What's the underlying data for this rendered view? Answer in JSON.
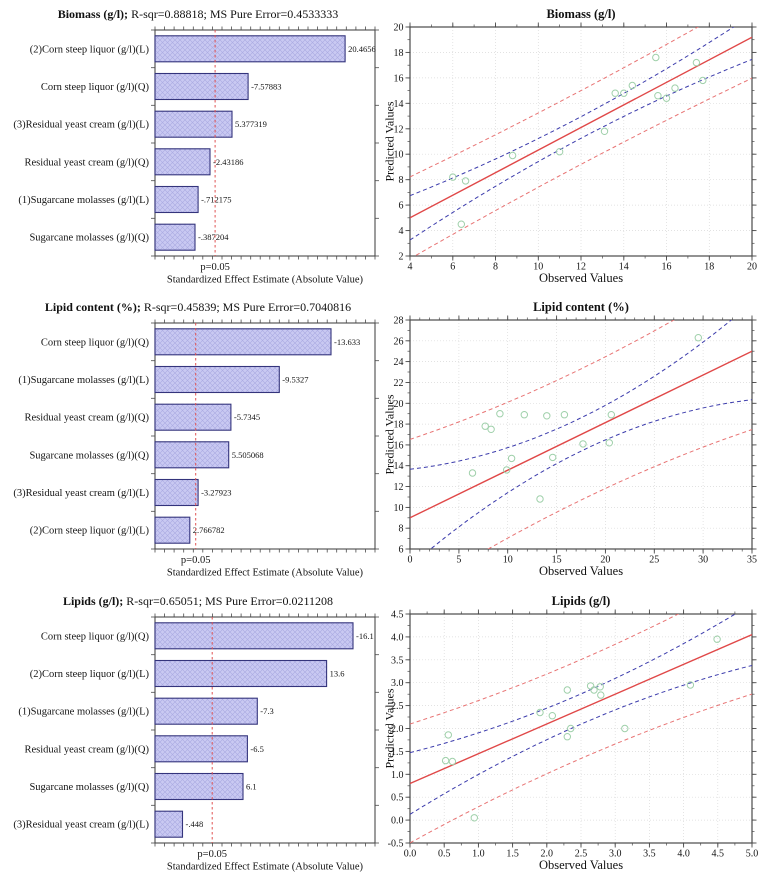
{
  "figure_description": "Six-panel Statistica output: three Pareto charts of standardized effects (left) and three predicted-vs-observed scatter plots with regression and band lines (right)",
  "labels": {
    "p": "p=0.05",
    "bar_axis": "Standardized Effect Estimate (Absolute Value)",
    "observed": "Observed Values",
    "predicted": "Predicted Values"
  },
  "colors": {
    "bar_fill": "#c9c9f2",
    "bar_hatch": "#aaaae2",
    "bar_border": "#34347c",
    "p_line": "#e05353",
    "frame": "#4a4a4a",
    "grid": "#d9d9d9",
    "fit_line": "#e04848",
    "confidence_band": "#3c3cac",
    "prediction_band": "#e87474",
    "marker": "#9fd0aa",
    "text": "#141414"
  },
  "chart_data": [
    {
      "id": 0,
      "type": "bar",
      "orientation": "horizontal-pareto",
      "title_bold": "Biomass (g/l);",
      "title_rest": "R-sqr=0.88818; MS Pure Error=0.4533333",
      "xlabel": "Standardized Effect Estimate (Absolute Value)",
      "p_label": "p=0.05",
      "categories": [
        "(2)Corn steep liquor (g/l)(L)",
        "Corn steep liquor (g/l)(Q)",
        "(3)Residual yeast cream (g/l)(L)",
        "Residual yeast cream (g/l)(Q)",
        "(1)Sugarcane molasses (g/l)(L)",
        "Sugarcane molasses (g/l)(Q)"
      ],
      "values": [
        20.4656,
        -7.57883,
        5.377319,
        -2.43186,
        -0.712175,
        -0.387204
      ],
      "value_labels": [
        "20.4656",
        "-7.57883",
        "5.377319",
        "-2.43186",
        "-.712175",
        "-.387204"
      ],
      "bar_fractions": [
        0.864,
        0.423,
        0.35,
        0.25,
        0.196,
        0.182
      ],
      "p_line_fraction": 0.273
    },
    {
      "id": 1,
      "type": "scatter",
      "title": "Biomass (g/l)",
      "xlabel": "Observed Values",
      "ylabel": "Predicted Values",
      "xlim": [
        4,
        20
      ],
      "ylim": [
        2,
        20
      ],
      "xtick_values": [
        4,
        6,
        8,
        10,
        12,
        14,
        16,
        18,
        20
      ],
      "xtick_labels": [
        "4",
        "6",
        "8",
        "10",
        "12",
        "14",
        "16",
        "18",
        "20"
      ],
      "ytick_values": [
        2,
        4,
        6,
        8,
        10,
        12,
        14,
        16,
        18,
        20
      ],
      "ytick_labels": [
        "2",
        "4",
        "6",
        "8",
        "10",
        "12",
        "14",
        "16",
        "18",
        "20"
      ],
      "x_minor_step": 1,
      "y_minor_step": 1,
      "points": [
        [
          6.0,
          8.2
        ],
        [
          6.4,
          4.5
        ],
        [
          6.6,
          7.9
        ],
        [
          8.8,
          9.9
        ],
        [
          11.0,
          10.2
        ],
        [
          13.1,
          11.8
        ],
        [
          13.6,
          14.8
        ],
        [
          14.0,
          14.8
        ],
        [
          14.4,
          15.4
        ],
        [
          15.5,
          17.6
        ],
        [
          15.6,
          14.6
        ],
        [
          16.0,
          14.4
        ],
        [
          16.4,
          15.2
        ],
        [
          17.4,
          17.2
        ],
        [
          17.7,
          15.8
        ]
      ],
      "fit_line": {
        "x": [
          4,
          20
        ],
        "y": [
          5.0,
          19.2
        ]
      },
      "bands": {
        "confidence": {
          "a": 0.85,
          "b": 0.014
        },
        "prediction": {
          "a": 2.9,
          "b": 0.005
        }
      }
    },
    {
      "id": 2,
      "type": "bar",
      "orientation": "horizontal-pareto",
      "title_bold": "Lipid content (%);",
      "title_rest": "R-sqr=0.45839; MS Pure Error=0.7040816",
      "xlabel": "Standardized Effect Estimate (Absolute Value)",
      "p_label": "p=0.05",
      "categories": [
        "Corn steep liquor (g/l)(Q)",
        "(1)Sugarcane molasses (g/l)(L)",
        "Residual yeast cream (g/l)(Q)",
        "Sugarcane molasses (g/l)(Q)",
        "(3)Residual yeast cream (g/l)(L)",
        "(2)Corn steep liquor (g/l)(L)"
      ],
      "values": [
        -13.633,
        -9.5327,
        -5.7345,
        5.505068,
        -3.27923,
        2.766782
      ],
      "value_labels": [
        "-13.633",
        "-9.5327",
        "-5.7345",
        "5.505068",
        "-3.27923",
        "2.766782"
      ],
      "bar_fractions": [
        0.8,
        0.565,
        0.345,
        0.335,
        0.196,
        0.158
      ],
      "p_line_fraction": 0.185
    },
    {
      "id": 3,
      "type": "scatter",
      "title": "Lipid content (%)",
      "xlabel": "Observed Values",
      "ylabel": "Predicted Values",
      "xlim": [
        0,
        35
      ],
      "ylim": [
        6,
        28
      ],
      "xtick_values": [
        0,
        5,
        10,
        15,
        20,
        25,
        30,
        35
      ],
      "xtick_labels": [
        "0",
        "5",
        "10",
        "15",
        "20",
        "25",
        "30",
        "35"
      ],
      "ytick_values": [
        6,
        8,
        10,
        12,
        14,
        16,
        18,
        20,
        22,
        24,
        26,
        28
      ],
      "ytick_labels": [
        "6",
        "8",
        "10",
        "12",
        "14",
        "16",
        "18",
        "20",
        "22",
        "24",
        "26",
        "28"
      ],
      "x_minor_step": 1,
      "y_minor_step": 1,
      "points": [
        [
          6.4,
          13.3
        ],
        [
          7.7,
          17.8
        ],
        [
          8.3,
          17.5
        ],
        [
          9.2,
          19.0
        ],
        [
          9.9,
          13.6
        ],
        [
          10.4,
          14.7
        ],
        [
          11.7,
          18.9
        ],
        [
          13.3,
          10.8
        ],
        [
          14.0,
          18.8
        ],
        [
          14.6,
          14.8
        ],
        [
          15.8,
          18.9
        ],
        [
          17.7,
          16.1
        ],
        [
          20.4,
          16.2
        ],
        [
          20.6,
          18.9
        ],
        [
          29.5,
          26.3
        ]
      ],
      "fit_line": {
        "x": [
          0,
          35
        ],
        "y": [
          9.0,
          25.0
        ]
      },
      "bands": {
        "confidence": {
          "a": 1.6,
          "b": 0.01
        },
        "prediction": {
          "a": 6.3,
          "b": 0.004
        }
      }
    },
    {
      "id": 4,
      "type": "bar",
      "orientation": "horizontal-pareto",
      "title_bold": "Lipids (g/l);",
      "title_rest": "R-sqr=0.65051; MS Pure Error=0.0211208",
      "xlabel": "Standardized Effect Estimate (Absolute Value)",
      "p_label": "p=0.05",
      "categories": [
        "Corn steep liquor (g/l)(Q)",
        "(2)Corn steep liquor (g/l)(L)",
        "(1)Sugarcane molasses (g/l)(L)",
        "Residual yeast cream (g/l)(Q)",
        "Sugarcane molasses (g/l)(Q)",
        "(3)Residual yeast cream (g/l)(L)"
      ],
      "values": [
        -16.1,
        13.6,
        -7.3,
        -6.5,
        6.1,
        -0.448
      ],
      "value_labels": [
        "-16.1",
        "13.6",
        "-7.3",
        "-6.5",
        "6.1",
        "-.448"
      ],
      "bar_fractions": [
        0.9,
        0.78,
        0.465,
        0.42,
        0.4,
        0.125
      ],
      "p_line_fraction": 0.26
    },
    {
      "id": 5,
      "type": "scatter",
      "title": "Lipids (g/l)",
      "xlabel": "Observed Values",
      "ylabel": "Predicted Values",
      "xlim": [
        0,
        5
      ],
      "ylim": [
        -0.5,
        4.5
      ],
      "xtick_values": [
        0,
        0.5,
        1,
        1.5,
        2,
        2.5,
        3,
        3.5,
        4,
        4.5,
        5
      ],
      "xtick_labels": [
        "0.0",
        "0.5",
        "1.0",
        "1.5",
        "2.0",
        "2.5",
        "3.0",
        "3.5",
        "4.0",
        "4.5",
        "5.0"
      ],
      "ytick_values": [
        -0.5,
        0,
        0.5,
        1,
        1.5,
        2,
        2.5,
        3,
        3.5,
        4,
        4.5
      ],
      "ytick_labels": [
        "-0.5",
        "0.0",
        "0.5",
        "1.0",
        "1.5",
        "2.0",
        "2.5",
        "3.0",
        "3.5",
        "4.0",
        "4.5"
      ],
      "x_minor_step": 0.25,
      "y_minor_step": 0.25,
      "points": [
        [
          0.52,
          1.3
        ],
        [
          0.56,
          1.86
        ],
        [
          0.62,
          1.28
        ],
        [
          0.94,
          0.05
        ],
        [
          1.9,
          2.35
        ],
        [
          2.08,
          2.28
        ],
        [
          2.3,
          2.84
        ],
        [
          2.3,
          1.82
        ],
        [
          2.35,
          2.0
        ],
        [
          2.64,
          2.93
        ],
        [
          2.69,
          2.84
        ],
        [
          2.78,
          2.91
        ],
        [
          2.79,
          2.73
        ],
        [
          3.14,
          2.0
        ],
        [
          4.1,
          2.95
        ],
        [
          4.49,
          3.95
        ]
      ],
      "fit_line": {
        "x": [
          0,
          5
        ],
        "y": [
          0.8,
          4.05
        ]
      },
      "bands": {
        "confidence": {
          "a": 0.33,
          "b": 0.055
        },
        "prediction": {
          "a": 1.08,
          "b": 0.035
        }
      }
    }
  ]
}
